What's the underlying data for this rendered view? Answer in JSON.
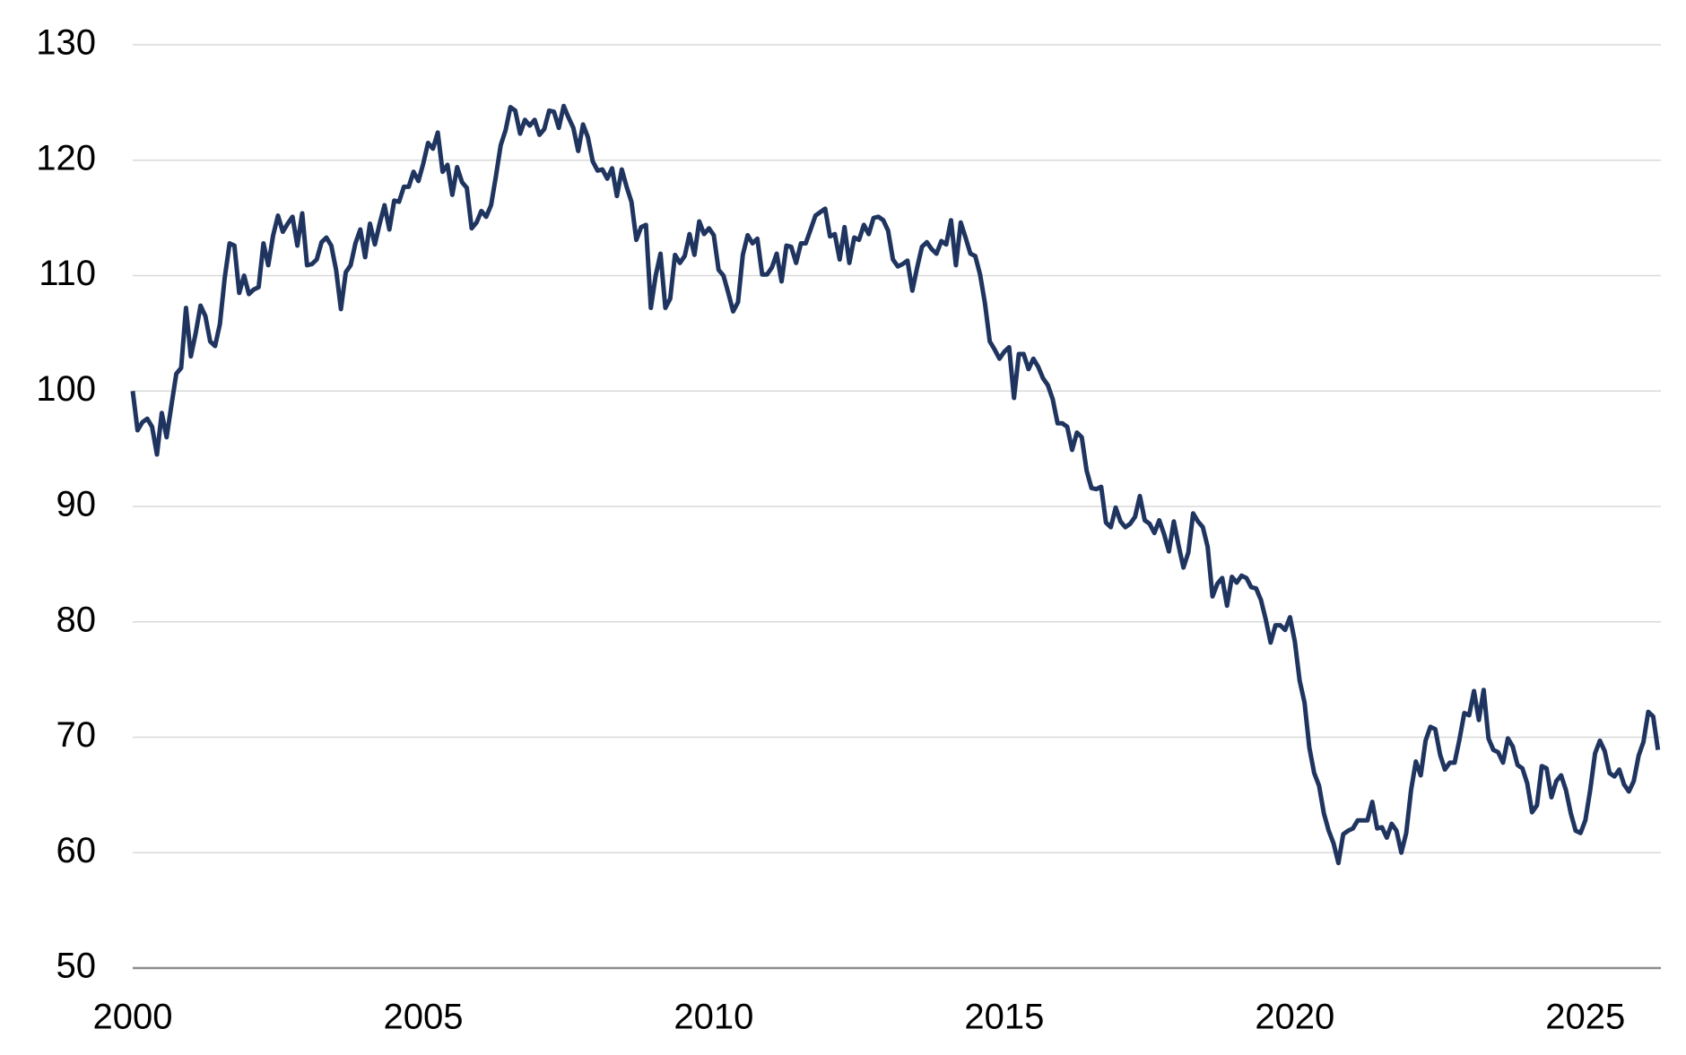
{
  "chart_data": {
    "type": "line",
    "x": [
      2000,
      2000.083,
      2000.167,
      2000.25,
      2000.333,
      2000.417,
      2000.5,
      2000.583,
      2000.667,
      2000.75,
      2000.833,
      2000.917,
      2001,
      2001.083,
      2001.167,
      2001.25,
      2001.333,
      2001.417,
      2001.5,
      2001.583,
      2001.667,
      2001.75,
      2001.833,
      2001.917,
      2002,
      2002.083,
      2002.167,
      2002.25,
      2002.333,
      2002.417,
      2002.5,
      2002.583,
      2002.667,
      2002.75,
      2002.833,
      2002.917,
      2003,
      2003.083,
      2003.167,
      2003.25,
      2003.333,
      2003.417,
      2003.5,
      2003.583,
      2003.667,
      2003.75,
      2003.833,
      2003.917,
      2004,
      2004.083,
      2004.167,
      2004.25,
      2004.333,
      2004.417,
      2004.5,
      2004.583,
      2004.667,
      2004.75,
      2004.833,
      2004.917,
      2005,
      2005.083,
      2005.167,
      2005.25,
      2005.333,
      2005.417,
      2005.5,
      2005.583,
      2005.667,
      2005.75,
      2005.833,
      2005.917,
      2006,
      2006.083,
      2006.167,
      2006.25,
      2006.333,
      2006.417,
      2006.5,
      2006.583,
      2006.667,
      2006.75,
      2006.833,
      2006.917,
      2007,
      2007.083,
      2007.167,
      2007.25,
      2007.333,
      2007.417,
      2007.5,
      2007.583,
      2007.667,
      2007.75,
      2007.833,
      2007.917,
      2008,
      2008.083,
      2008.167,
      2008.25,
      2008.333,
      2008.417,
      2008.5,
      2008.583,
      2008.667,
      2008.75,
      2008.833,
      2008.917,
      2009,
      2009.083,
      2009.167,
      2009.25,
      2009.333,
      2009.417,
      2009.5,
      2009.583,
      2009.667,
      2009.75,
      2009.833,
      2009.917,
      2010,
      2010.083,
      2010.167,
      2010.25,
      2010.333,
      2010.417,
      2010.5,
      2010.583,
      2010.667,
      2010.75,
      2010.833,
      2010.917,
      2011,
      2011.083,
      2011.167,
      2011.25,
      2011.333,
      2011.417,
      2011.5,
      2011.583,
      2011.667,
      2011.75,
      2011.833,
      2011.917,
      2012,
      2012.083,
      2012.167,
      2012.25,
      2012.333,
      2012.417,
      2012.5,
      2012.583,
      2012.667,
      2012.75,
      2012.833,
      2012.917,
      2013,
      2013.083,
      2013.167,
      2013.25,
      2013.333,
      2013.417,
      2013.5,
      2013.583,
      2013.667,
      2013.75,
      2013.833,
      2013.917,
      2014,
      2014.083,
      2014.167,
      2014.25,
      2014.333,
      2014.417,
      2014.5,
      2014.583,
      2014.667,
      2014.75,
      2014.833,
      2014.917,
      2015,
      2015.083,
      2015.167,
      2015.25,
      2015.333,
      2015.417,
      2015.5,
      2015.583,
      2015.667,
      2015.75,
      2015.833,
      2015.917,
      2016,
      2016.083,
      2016.167,
      2016.25,
      2016.333,
      2016.417,
      2016.5,
      2016.583,
      2016.667,
      2016.75,
      2016.833,
      2016.917,
      2017,
      2017.083,
      2017.167,
      2017.25,
      2017.333,
      2017.417,
      2017.5,
      2017.583,
      2017.667,
      2017.75,
      2017.833,
      2017.917,
      2018,
      2018.083,
      2018.167,
      2018.25,
      2018.333,
      2018.417,
      2018.5,
      2018.583,
      2018.667,
      2018.75,
      2018.833,
      2018.917,
      2019,
      2019.083,
      2019.167,
      2019.25,
      2019.333,
      2019.417,
      2019.5,
      2019.583,
      2019.667,
      2019.75,
      2019.833,
      2019.917,
      2020,
      2020.083,
      2020.167,
      2020.25,
      2020.333,
      2020.417,
      2020.5,
      2020.583,
      2020.667,
      2020.75,
      2020.833,
      2020.917,
      2021,
      2021.083,
      2021.167,
      2021.25,
      2021.333,
      2021.417,
      2021.5,
      2021.583,
      2021.667,
      2021.75,
      2021.833,
      2021.917,
      2022,
      2022.083,
      2022.167,
      2022.25,
      2022.333,
      2022.417,
      2022.5,
      2022.583,
      2022.667,
      2022.75,
      2022.833,
      2022.917,
      2023,
      2023.083,
      2023.167,
      2023.25,
      2023.333,
      2023.417,
      2023.5,
      2023.583,
      2023.667,
      2023.75,
      2023.833,
      2023.917,
      2024,
      2024.083,
      2024.167,
      2024.25,
      2024.333,
      2024.417,
      2024.5,
      2024.583,
      2024.667,
      2024.75,
      2024.833,
      2024.917,
      2025,
      2025.083,
      2025.167,
      2025.25,
      2025.333,
      2025.417,
      2025.5,
      2025.583,
      2025.667,
      2025.75,
      2025.833,
      2025.917,
      2026,
      2026.083,
      2026.167,
      2026.25
    ],
    "series": [
      {
        "color": "#1f3560",
        "values": [
          100,
          96.6,
          97.3,
          97.6,
          96.9,
          94.5,
          98.1,
          96,
          98.8,
          101.5,
          102,
          107.2,
          103,
          105,
          107.4,
          106.5,
          104.3,
          103.9,
          105.8,
          109.8,
          112.8,
          112.6,
          108.5,
          110,
          108.4,
          108.8,
          109,
          112.8,
          110.9,
          113.5,
          115.2,
          113.8,
          114.5,
          115.1,
          112.6,
          115.4,
          110.9,
          111,
          111.4,
          112.9,
          113.3,
          112.6,
          110.5,
          107.1,
          110.3,
          110.9,
          112.8,
          114,
          111.6,
          114.5,
          112.7,
          114.5,
          116.1,
          114,
          116.5,
          116.4,
          117.7,
          117.7,
          119,
          118.2,
          119.7,
          121.5,
          121,
          122.4,
          119,
          119.6,
          117,
          119.4,
          118.1,
          117.6,
          114.1,
          114.6,
          115.6,
          115.1,
          116.1,
          118.6,
          121.3,
          122.6,
          124.6,
          124.3,
          122.3,
          123.5,
          123,
          123.5,
          122.2,
          122.7,
          124.3,
          124.2,
          122.8,
          124.7,
          123.7,
          122.8,
          120.8,
          123.1,
          122,
          119.9,
          119.1,
          119.2,
          118.4,
          119.3,
          116.9,
          119.2,
          117.7,
          116.4,
          113.1,
          114.2,
          114.4,
          107.2,
          110,
          111.9,
          107.2,
          108,
          111.8,
          111.1,
          111.7,
          113.6,
          111.8,
          114.7,
          113.6,
          114.1,
          113.5,
          110.5,
          110,
          108.5,
          106.9,
          107.7,
          111.8,
          113.5,
          112.8,
          113.2,
          110.1,
          110.1,
          110.7,
          111.9,
          109.5,
          112.6,
          112.5,
          111.1,
          112.8,
          112.8,
          114,
          115.2,
          115.5,
          115.8,
          113.4,
          113.6,
          111.4,
          114.2,
          111.1,
          113.3,
          113.1,
          114.4,
          113.6,
          115,
          115.1,
          114.8,
          113.9,
          111.4,
          110.8,
          111,
          111.3,
          108.7,
          110.7,
          112.5,
          112.9,
          112.3,
          111.9,
          113,
          112.7,
          114.8,
          110.9,
          114.6,
          113.3,
          111.9,
          111.7,
          110.1,
          107.6,
          104.3,
          103.6,
          102.8,
          103.4,
          103.8,
          99.4,
          103.2,
          103.2,
          101.9,
          102.8,
          102.1,
          101.1,
          100.5,
          99.3,
          97.2,
          97.2,
          96.9,
          94.9,
          96.4,
          96,
          93.1,
          91.6,
          91.5,
          91.7,
          88.6,
          88.2,
          89.9,
          88.7,
          88.2,
          88.5,
          89.1,
          90.9,
          88.8,
          88.5,
          87.7,
          88.8,
          87.6,
          86.1,
          88.7,
          86.6,
          84.7,
          86,
          89.4,
          88.7,
          88.2,
          86.5,
          82.2,
          83.3,
          83.8,
          81.4,
          83.9,
          83.4,
          84,
          83.8,
          83,
          82.9,
          81.9,
          80.2,
          78.2,
          79.7,
          79.7,
          79.3,
          80.4,
          78.3,
          74.9,
          73,
          69.1,
          66.9,
          65.8,
          63.4,
          61.9,
          60.8,
          59.1,
          61.6,
          61.9,
          62.1,
          62.8,
          62.8,
          62.8,
          64.4,
          62.1,
          62.2,
          61.3,
          62.5,
          61.9,
          60,
          61.7,
          65.4,
          67.9,
          66.7,
          69.7,
          70.9,
          70.7,
          68.5,
          67.2,
          67.8,
          67.8,
          69.8,
          72.1,
          71.9,
          74,
          71.5,
          74.1,
          69.9,
          68.9,
          68.7,
          67.8,
          69.9,
          69.2,
          67.6,
          67.3,
          66,
          63.5,
          64.1,
          67.5,
          67.3,
          64.8,
          66.2,
          66.7,
          65.4,
          63.4,
          61.9,
          61.7,
          62.8,
          65.4,
          68.6,
          69.7,
          68.8,
          66.9,
          66.6,
          67.2,
          65.9,
          65.3,
          66.2,
          68.4,
          69.6,
          72.2,
          71.8,
          68.9
        ]
      }
    ],
    "xlim": [
      2000,
      2026.3
    ],
    "xticks": [
      2000,
      2005,
      2010,
      2015,
      2020,
      2025
    ],
    "ylim": [
      50,
      130
    ],
    "yticks": [
      50,
      60,
      70,
      80,
      90,
      100,
      110,
      120,
      130
    ],
    "grid": true
  }
}
